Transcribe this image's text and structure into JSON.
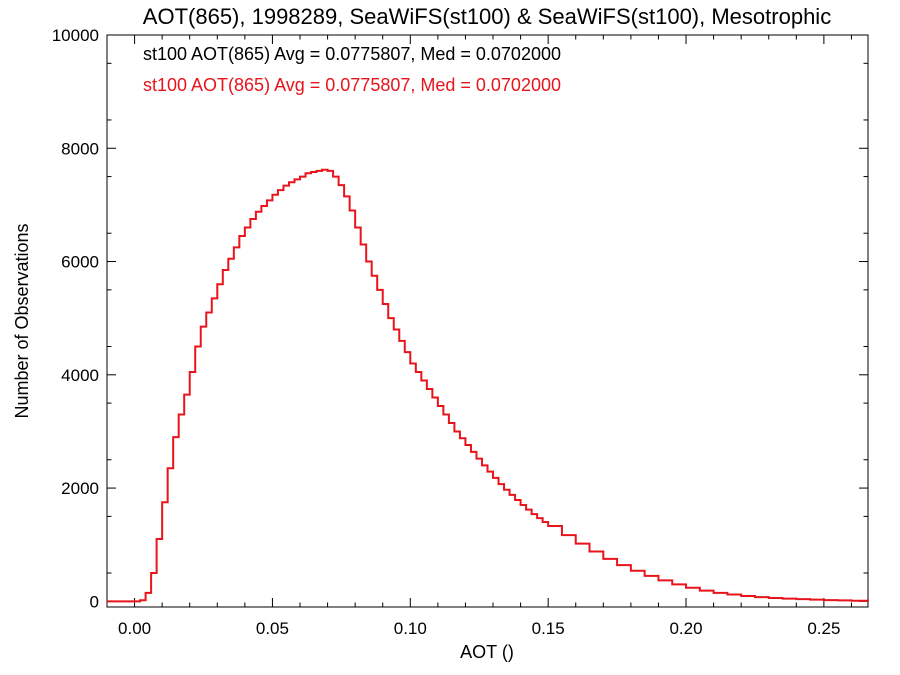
{
  "chart_data": {
    "type": "line",
    "title": "AOT(865), 1998289, SeaWiFS(st100) & SeaWiFS(st100), Mesotrophic",
    "xlabel": "AOT ()",
    "ylabel": "Number of Observations",
    "xlim": [
      -0.01,
      0.266
    ],
    "ylim": [
      -100,
      10000
    ],
    "x_ticks": [
      0.0,
      0.05,
      0.1,
      0.15,
      0.2,
      0.25
    ],
    "x_tick_labels": [
      "0.00",
      "0.05",
      "0.10",
      "0.15",
      "0.20",
      "0.25"
    ],
    "y_ticks": [
      0,
      2000,
      4000,
      6000,
      8000,
      10000
    ],
    "y_tick_labels": [
      "0",
      "2000",
      "4000",
      "6000",
      "8000",
      "10000"
    ],
    "grid": false,
    "legend": "none",
    "annotations": [
      {
        "text": "st100 AOT(865) Avg = 0.0775807, Med = 0.0702000",
        "color": "#000000"
      },
      {
        "text": "st100 AOT(865) Avg = 0.0775807, Med = 0.0702000",
        "color": "#e8141c"
      }
    ],
    "series": [
      {
        "color": "#e8141c",
        "step": true,
        "x": [
          -0.01,
          0.0,
          0.002,
          0.004,
          0.006,
          0.008,
          0.01,
          0.012,
          0.014,
          0.016,
          0.018,
          0.02,
          0.022,
          0.024,
          0.026,
          0.028,
          0.03,
          0.032,
          0.034,
          0.036,
          0.038,
          0.04,
          0.042,
          0.044,
          0.046,
          0.048,
          0.05,
          0.052,
          0.054,
          0.056,
          0.058,
          0.06,
          0.062,
          0.064,
          0.066,
          0.068,
          0.07,
          0.072,
          0.074,
          0.076,
          0.078,
          0.08,
          0.082,
          0.084,
          0.086,
          0.088,
          0.09,
          0.092,
          0.094,
          0.096,
          0.098,
          0.1,
          0.102,
          0.104,
          0.106,
          0.108,
          0.11,
          0.112,
          0.114,
          0.116,
          0.118,
          0.12,
          0.122,
          0.124,
          0.126,
          0.128,
          0.13,
          0.132,
          0.134,
          0.136,
          0.138,
          0.14,
          0.142,
          0.144,
          0.146,
          0.148,
          0.15,
          0.155,
          0.16,
          0.165,
          0.17,
          0.175,
          0.18,
          0.185,
          0.19,
          0.195,
          0.2,
          0.205,
          0.21,
          0.215,
          0.22,
          0.225,
          0.23,
          0.235,
          0.24,
          0.245,
          0.25,
          0.255,
          0.26,
          0.266
        ],
        "values": [
          0,
          0,
          20,
          150,
          500,
          1100,
          1750,
          2350,
          2900,
          3300,
          3650,
          4050,
          4500,
          4850,
          5100,
          5350,
          5600,
          5850,
          6050,
          6250,
          6450,
          6600,
          6750,
          6880,
          6980,
          7080,
          7180,
          7260,
          7340,
          7400,
          7450,
          7500,
          7560,
          7580,
          7600,
          7620,
          7600,
          7500,
          7350,
          7150,
          6900,
          6600,
          6300,
          6000,
          5750,
          5500,
          5250,
          5000,
          4800,
          4600,
          4400,
          4200,
          4050,
          3900,
          3750,
          3600,
          3450,
          3300,
          3150,
          3000,
          2880,
          2760,
          2640,
          2520,
          2400,
          2290,
          2180,
          2070,
          1970,
          1880,
          1790,
          1700,
          1620,
          1540,
          1470,
          1400,
          1330,
          1170,
          1020,
          880,
          750,
          640,
          540,
          450,
          370,
          300,
          240,
          190,
          150,
          120,
          95,
          75,
          60,
          48,
          38,
          30,
          22,
          16,
          10,
          5
        ]
      }
    ]
  }
}
